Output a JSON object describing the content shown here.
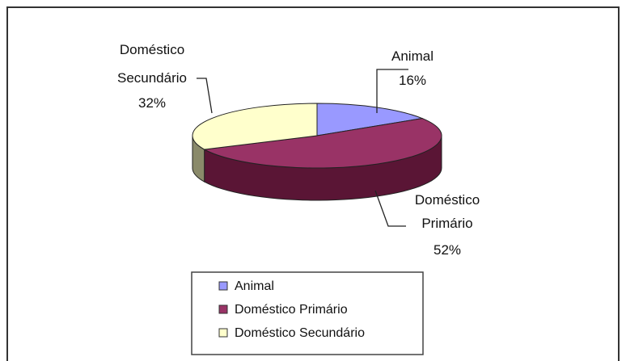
{
  "chart_data": {
    "type": "pie",
    "style": "3d",
    "title": "",
    "categories": [
      "Animal",
      "Doméstico Primário",
      "Doméstico Secundário"
    ],
    "values": [
      16,
      52,
      32
    ],
    "unit": "%",
    "colors": [
      "#9999ff",
      "#993366",
      "#ffffcc"
    ],
    "side_colors": [
      "#4a4a99",
      "#5a1535",
      "#8a8a6a"
    ],
    "data_labels": [
      {
        "lines": [
          "Animal",
          "16%"
        ]
      },
      {
        "lines": [
          "Doméstico",
          "Primário",
          "52%"
        ]
      },
      {
        "lines": [
          "Doméstico",
          "Secundário",
          "32%"
        ]
      }
    ],
    "legend": {
      "position": "bottom",
      "items": [
        "Animal",
        "Doméstico Primário",
        "Doméstico Secundário"
      ]
    }
  }
}
